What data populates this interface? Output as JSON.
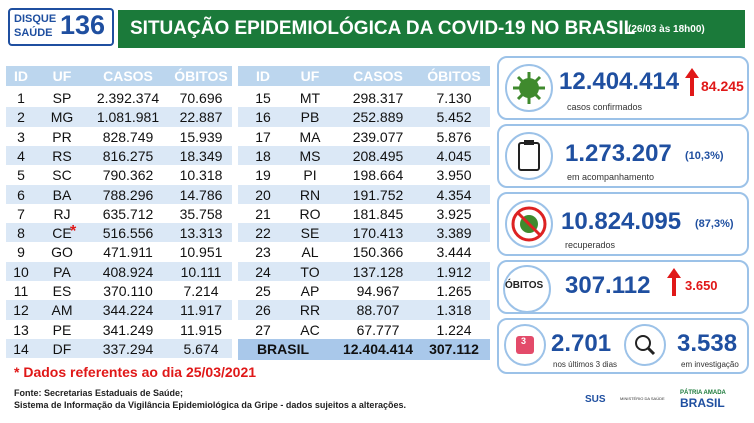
{
  "header": {
    "logo_line1": "DISQUE",
    "logo_line2": "SAÚDE",
    "logo_number": "136",
    "title": "SITUAÇÃO EPIDEMIOLÓGICA DA COVID-19 NO BRASIL",
    "date": "(26/03 às 18h00)"
  },
  "table_left": {
    "columns": [
      "ID",
      "UF",
      "CASOS",
      "ÓBITOS"
    ],
    "asterisk": "*",
    "rows": [
      [
        "1",
        "SP",
        "2.392.374",
        "70.696"
      ],
      [
        "2",
        "MG",
        "1.081.981",
        "22.887"
      ],
      [
        "3",
        "PR",
        "828.749",
        "15.939"
      ],
      [
        "4",
        "RS",
        "816.275",
        "18.349"
      ],
      [
        "5",
        "SC",
        "790.362",
        "10.318"
      ],
      [
        "6",
        "BA",
        "788.296",
        "14.786"
      ],
      [
        "7",
        "RJ",
        "635.712",
        "35.758"
      ],
      [
        "8",
        "CE",
        "516.556",
        "13.313"
      ],
      [
        "9",
        "GO",
        "471.911",
        "10.951"
      ],
      [
        "10",
        "PA",
        "408.924",
        "10.111"
      ],
      [
        "11",
        "ES",
        "370.110",
        "7.214"
      ],
      [
        "12",
        "AM",
        "344.224",
        "11.917"
      ],
      [
        "13",
        "PE",
        "341.249",
        "11.915"
      ],
      [
        "14",
        "DF",
        "337.294",
        "5.674"
      ]
    ]
  },
  "table_right": {
    "columns": [
      "ID",
      "UF",
      "CASOS",
      "ÓBITOS"
    ],
    "rows": [
      [
        "15",
        "MT",
        "298.317",
        "7.130"
      ],
      [
        "16",
        "PB",
        "252.889",
        "5.452"
      ],
      [
        "17",
        "MA",
        "239.077",
        "5.876"
      ],
      [
        "18",
        "MS",
        "208.495",
        "4.045"
      ],
      [
        "19",
        "PI",
        "198.664",
        "3.950"
      ],
      [
        "20",
        "RN",
        "191.752",
        "4.354"
      ],
      [
        "21",
        "RO",
        "181.845",
        "3.925"
      ],
      [
        "22",
        "SE",
        "170.413",
        "3.389"
      ],
      [
        "23",
        "AL",
        "150.366",
        "3.444"
      ],
      [
        "24",
        "TO",
        "137.128",
        "1.912"
      ],
      [
        "25",
        "AP",
        "94.967",
        "1.265"
      ],
      [
        "26",
        "RR",
        "88.707",
        "1.318"
      ],
      [
        "27",
        "AC",
        "67.777",
        "1.224"
      ]
    ],
    "total": [
      "BRASIL",
      "12.404.414",
      "307.112"
    ]
  },
  "cards": {
    "confirmed": {
      "value": "12.404.414",
      "new": "84.245",
      "label": "casos confirmados"
    },
    "monitoring": {
      "value": "1.273.207",
      "pct": "(10,3%)",
      "label": "em acompanhamento"
    },
    "recovered": {
      "value": "10.824.095",
      "pct": "(87,3%)",
      "label": "recuperados"
    },
    "deaths": {
      "badge": "ÓBITOS",
      "value": "307.112",
      "new": "3.650"
    },
    "recent": {
      "badge": "3",
      "value": "2.701",
      "label": "nos últimos 3 dias"
    },
    "investigation": {
      "value": "3.538",
      "label": "em investigação"
    }
  },
  "footer": {
    "note": "* Dados referentes ao dia 25/03/2021",
    "source1": "Fonte: Secretarias Estaduais de Saúde;",
    "source2": "Sistema de Informação da Vigilância Epidemiológica da Gripe - dados sujeitos a alterações."
  },
  "logos": {
    "sus": "SUS",
    "ministry": "MINISTÉRIO DA SAÚDE",
    "gov1": "PÁTRIA AMADA",
    "gov2": "BRASIL"
  }
}
